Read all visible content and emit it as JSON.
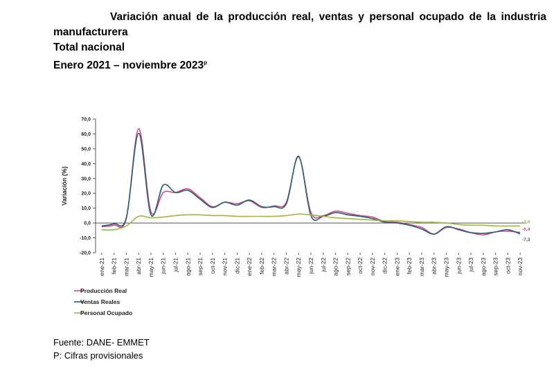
{
  "title": {
    "line1": "Variación anual de la producción real, ventas y personal ocupado de la industria manufacturera",
    "line2": "Total nacional",
    "line3": "Enero 2021 – noviembre 2023",
    "line3_sup": "p"
  },
  "chart_data": {
    "type": "line",
    "title": "Variación anual de la producción real, ventas y personal ocupado de la industria manufacturera - Total nacional",
    "xlabel": "",
    "ylabel": "Variación (%)",
    "ylim": [
      -20,
      70
    ],
    "yticks": [
      "70,0",
      "60,0",
      "50,0",
      "40,0",
      "30,0",
      "20,0",
      "10,0",
      "0,0",
      "-10,0",
      "-20,0"
    ],
    "categories": [
      "ene-21",
      "feb-21",
      "mar-21",
      "abr-21",
      "may-21",
      "jun-21",
      "jul-21",
      "ago-21",
      "sep-21",
      "oct-21",
      "nov-21",
      "dic-21",
      "ene-22",
      "feb-22",
      "mar-22",
      "abr-22",
      "may-22",
      "jun-22",
      "jul-22",
      "ago-22",
      "sep-22",
      "oct-22",
      "nov-22",
      "dic-22",
      "ene-23",
      "feb-23",
      "mar-23",
      "abr-23",
      "may-23",
      "jun-23",
      "jul-23",
      "ago-23",
      "sep-23",
      "oct-23",
      "nov-23"
    ],
    "series": [
      {
        "name": "Producción Real",
        "color": "#e0457b",
        "values": [
          -2.5,
          -1.5,
          3.0,
          63.5,
          7.5,
          20.5,
          20.5,
          23.0,
          17.0,
          11.0,
          14.0,
          13.0,
          15.0,
          10.5,
          11.5,
          14.0,
          44.5,
          7.0,
          5.0,
          8.0,
          6.5,
          5.0,
          4.0,
          1.0,
          0.5,
          -1.0,
          -3.0,
          -7.5,
          -3.0,
          -4.0,
          -6.5,
          -8.0,
          -6.0,
          -5.5,
          -6.4
        ]
      },
      {
        "name": "Ventas Reales",
        "color": "#1f5f7a",
        "values": [
          -2.0,
          -0.5,
          3.5,
          60.5,
          5.5,
          25.5,
          20.5,
          22.0,
          16.0,
          10.5,
          14.0,
          12.0,
          15.5,
          11.0,
          11.0,
          13.0,
          45.0,
          5.0,
          4.5,
          7.0,
          5.5,
          4.5,
          3.0,
          0.5,
          0.0,
          -1.5,
          -4.0,
          -7.5,
          -2.5,
          -4.5,
          -6.5,
          -7.0,
          -6.0,
          -4.5,
          -7.3
        ]
      },
      {
        "name": "Personal Ocupado",
        "color": "#9ab83a",
        "values": [
          -4.5,
          -4.5,
          -2.0,
          4.5,
          3.5,
          4.0,
          5.0,
          5.5,
          5.5,
          5.0,
          5.0,
          4.5,
          4.5,
          4.5,
          4.5,
          5.0,
          6.0,
          5.5,
          4.5,
          3.5,
          3.0,
          2.5,
          2.0,
          1.5,
          1.5,
          1.0,
          0.5,
          0.5,
          0.0,
          -1.0,
          -1.5,
          -1.5,
          -2.0,
          -2.0,
          -2.0
        ]
      }
    ],
    "end_labels": [
      "-6,4",
      "-7,3",
      "-2,0"
    ],
    "legend_position": "bottom-left",
    "grid": false
  },
  "footer": {
    "source_label": "Fuente",
    "source_text": ": DANE- EMMET",
    "note": "P: Cifras provisionales"
  }
}
